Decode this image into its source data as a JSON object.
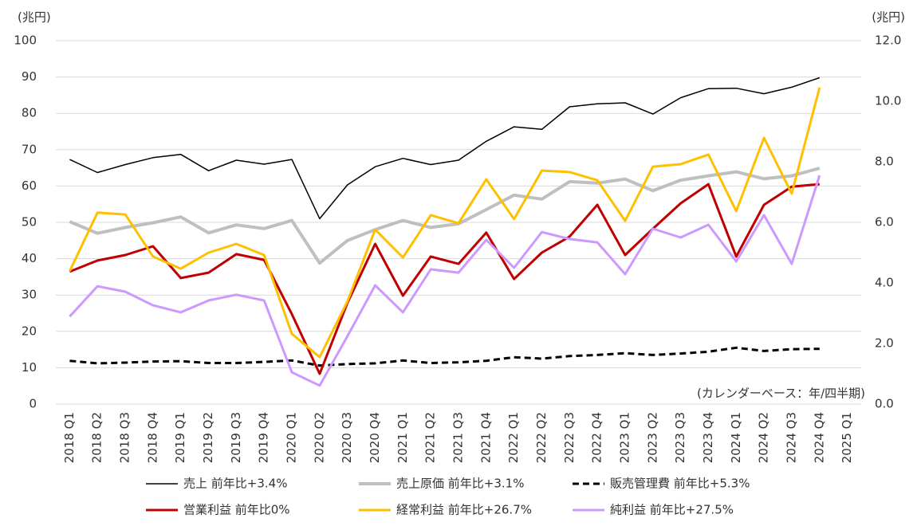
{
  "chart_data": {
    "type": "line",
    "annotations": [
      "(兆円)",
      "(兆円)",
      "(カレンダーベース：年/四半期)"
    ],
    "categories": [
      "2018 Q1",
      "2018 Q2",
      "2018 Q3",
      "2018 Q4",
      "2019 Q1",
      "2019 Q2",
      "2019 Q3",
      "2019 Q4",
      "2020 Q1",
      "2020 Q2",
      "2020 Q3",
      "2020 Q4",
      "2021 Q1",
      "2021 Q2",
      "2021 Q3",
      "2021 Q4",
      "2022 Q1",
      "2022 Q2",
      "2022 Q3",
      "2022 Q4",
      "2023 Q1",
      "2023 Q2",
      "2023 Q3",
      "2023 Q4",
      "2024 Q1",
      "2024 Q2",
      "2024 Q3",
      "2024 Q4",
      "2025 Q1"
    ],
    "ylim": [
      0,
      100
    ],
    "yticks": [
      0,
      10,
      20,
      30,
      40,
      50,
      60,
      70,
      80,
      90,
      100
    ],
    "y2lim": [
      0,
      12
    ],
    "y2ticks": [
      {
        "value": 0,
        "label": "0.0"
      },
      {
        "value": 2,
        "label": "2.0"
      },
      {
        "value": 4,
        "label": "4.0"
      },
      {
        "value": 6,
        "label": "6.0"
      },
      {
        "value": 8,
        "label": "8.0"
      },
      {
        "value": 10,
        "label": "10.0"
      },
      {
        "value": 12,
        "label": "12.0"
      }
    ],
    "grid": true,
    "series": [
      {
        "name": "売上 前年比+3.4%",
        "color": "#000000",
        "width": 1.5,
        "values": [
          67.3,
          63.7,
          65.9,
          67.8,
          68.7,
          64.2,
          67.1,
          66.0,
          67.3,
          51.0,
          60.3,
          65.3,
          67.6,
          65.9,
          67.1,
          72.3,
          76.3,
          75.6,
          81.8,
          82.6,
          82.9,
          79.8,
          84.3,
          86.8,
          86.9,
          85.4,
          87.2,
          89.8,
          null
        ]
      },
      {
        "name": "売上原価 前年比+3.1%",
        "color": "#bfbfbf",
        "width": 4,
        "values": [
          50.2,
          47.0,
          48.6,
          49.9,
          51.5,
          47.1,
          49.3,
          48.3,
          50.5,
          38.8,
          45.0,
          48.0,
          50.5,
          48.6,
          49.6,
          53.5,
          57.5,
          56.4,
          61.2,
          60.8,
          61.9,
          58.7,
          61.6,
          62.8,
          63.9,
          62.0,
          62.8,
          64.9,
          null
        ]
      },
      {
        "name": "販売管理費 前年比+5.3%",
        "color": "#000000",
        "width": 3,
        "dashed": true,
        "values": [
          11.9,
          11.2,
          11.4,
          11.7,
          11.8,
          11.3,
          11.3,
          11.6,
          12.0,
          10.6,
          11.0,
          11.2,
          12.0,
          11.3,
          11.5,
          11.9,
          12.9,
          12.5,
          13.2,
          13.5,
          14.0,
          13.5,
          13.9,
          14.4,
          15.5,
          14.6,
          15.1,
          15.2,
          null
        ]
      },
      {
        "name": "営業利益 前年比0%",
        "color": "#c00000",
        "width": 3,
        "axis": "y2",
        "values": [
          4.37,
          4.74,
          4.92,
          5.21,
          4.16,
          4.34,
          4.95,
          4.76,
          2.97,
          1.0,
          3.34,
          5.29,
          3.58,
          4.87,
          4.63,
          5.66,
          4.13,
          5.0,
          5.53,
          6.58,
          4.92,
          5.79,
          6.63,
          7.26,
          4.87,
          6.58,
          7.18,
          7.26,
          null
        ]
      },
      {
        "name": "経常利益 前年比+26.7%",
        "color": "#ffc000",
        "width": 3,
        "axis": "y2",
        "values": [
          4.39,
          6.32,
          6.26,
          4.87,
          4.47,
          5.0,
          5.29,
          4.92,
          2.32,
          1.55,
          3.39,
          5.76,
          4.84,
          6.24,
          5.97,
          7.42,
          6.11,
          7.71,
          7.66,
          7.39,
          6.05,
          7.84,
          7.92,
          8.24,
          6.37,
          8.79,
          6.95,
          10.45,
          null
        ]
      },
      {
        "name": "純利益 前年比+27.5%",
        "color": "#cc99ff",
        "width": 3,
        "axis": "y2",
        "values": [
          2.89,
          3.89,
          3.71,
          3.26,
          3.03,
          3.42,
          3.61,
          3.42,
          1.05,
          0.61,
          2.24,
          3.92,
          3.03,
          4.45,
          4.34,
          5.42,
          4.5,
          5.68,
          5.45,
          5.34,
          4.29,
          5.79,
          5.5,
          5.92,
          4.71,
          6.24,
          4.63,
          7.55,
          null
        ]
      }
    ]
  }
}
